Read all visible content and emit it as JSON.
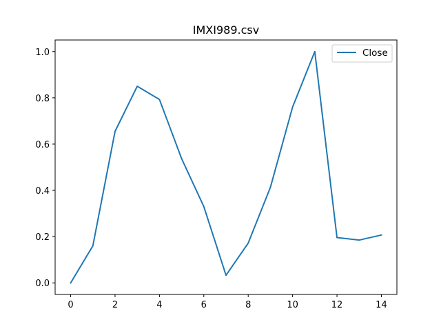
{
  "chart_data": {
    "type": "line",
    "title": "IMXI989.csv",
    "xlabel": "",
    "ylabel": "",
    "x": [
      0,
      1,
      2,
      3,
      4,
      5,
      6,
      7,
      8,
      9,
      10,
      11,
      12,
      13,
      14
    ],
    "series": [
      {
        "name": "Close",
        "color": "#1f77b4",
        "values": [
          0.0,
          0.16,
          0.655,
          0.85,
          0.793,
          0.537,
          0.33,
          0.033,
          0.172,
          0.413,
          0.76,
          1.0,
          0.196,
          0.185,
          0.207
        ]
      }
    ],
    "xlim": [
      -0.7,
      14.7
    ],
    "ylim": [
      -0.05,
      1.05
    ],
    "xticks": [
      0,
      2,
      4,
      6,
      8,
      10,
      12,
      14
    ],
    "xtick_labels": [
      "0",
      "2",
      "4",
      "6",
      "8",
      "10",
      "12",
      "14"
    ],
    "yticks": [
      0.0,
      0.2,
      0.4,
      0.6,
      0.8,
      1.0
    ],
    "ytick_labels": [
      "0.0",
      "0.2",
      "0.4",
      "0.6",
      "0.8",
      "1.0"
    ],
    "grid": false,
    "legend_position": "top-right"
  }
}
